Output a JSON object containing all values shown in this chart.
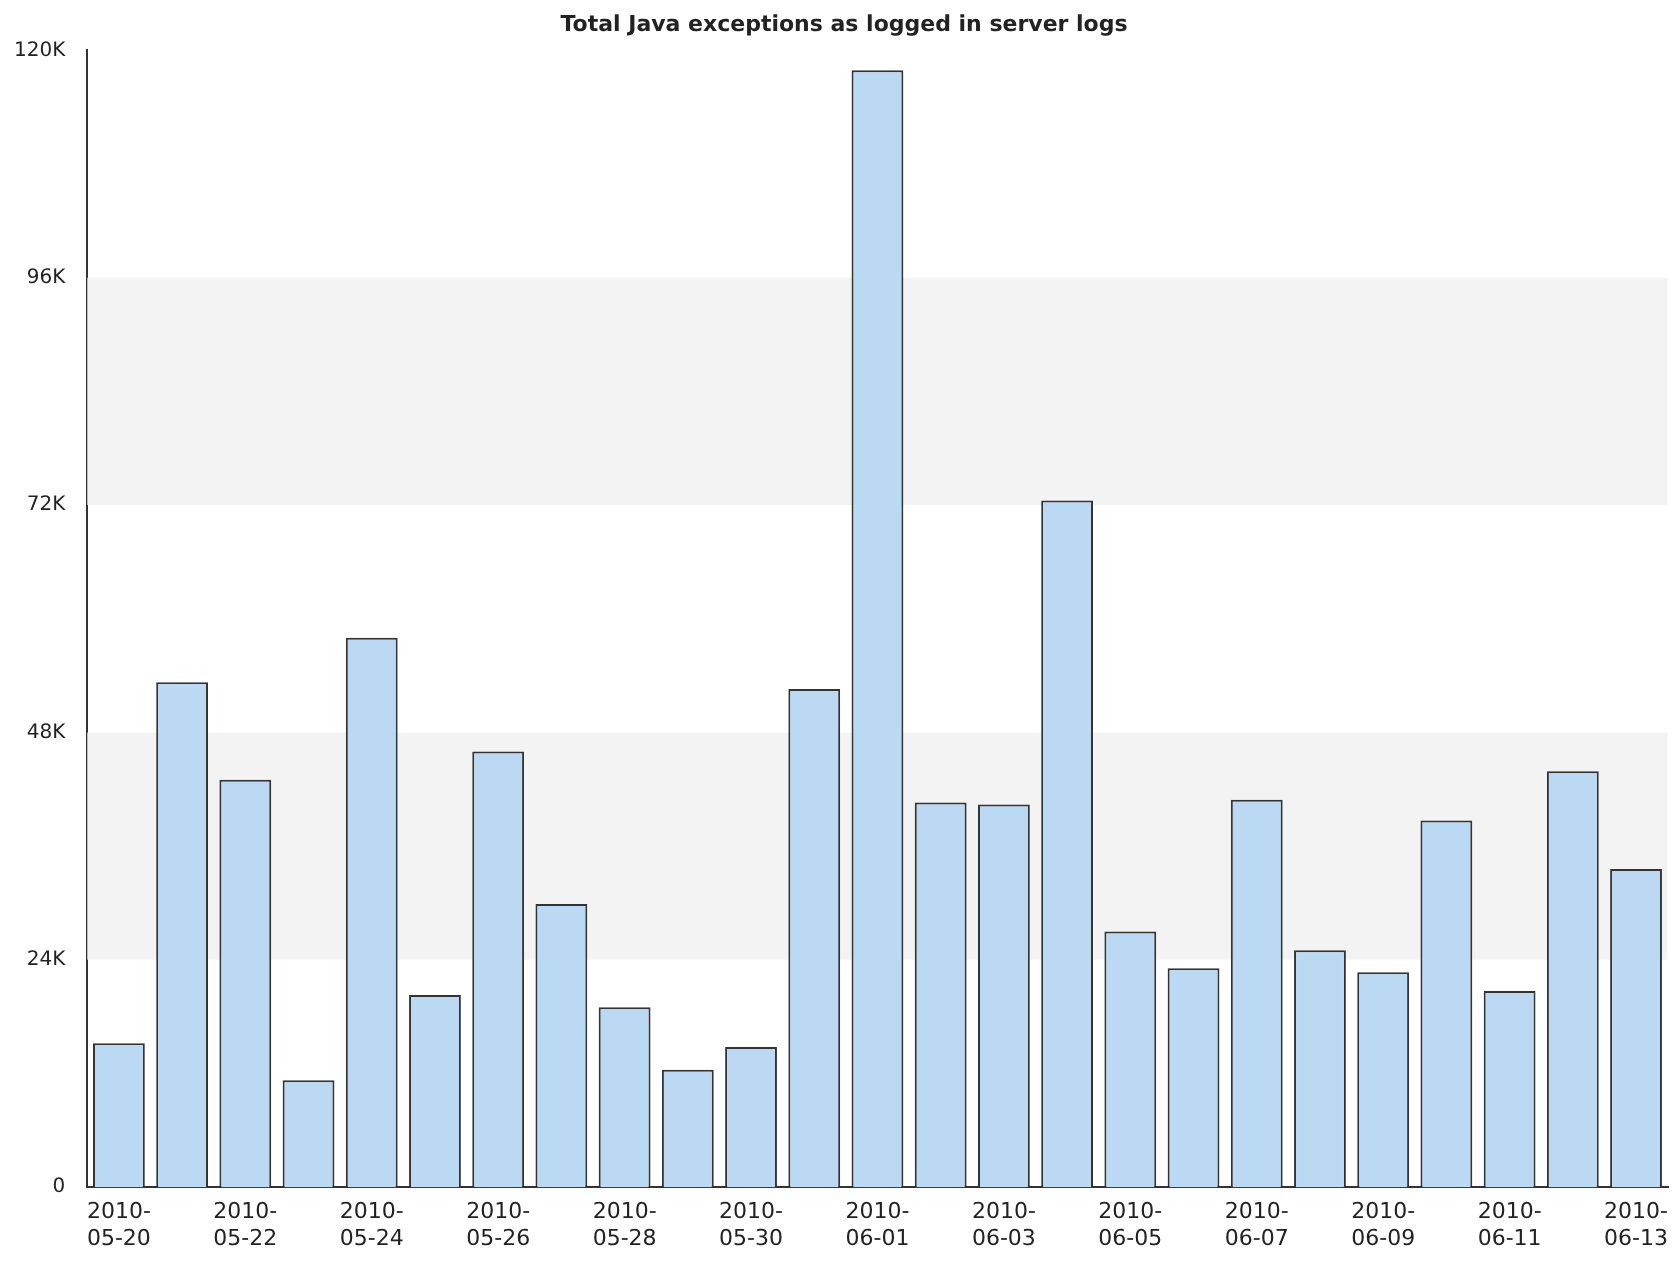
{
  "chart_data": {
    "type": "bar",
    "title": "Total Java exceptions as logged in server logs",
    "categories": [
      "2010-05-20",
      null,
      "2010-05-22",
      null,
      "2010-05-24",
      null,
      "2010-05-26",
      null,
      "2010-05-28",
      null,
      "2010-05-30",
      null,
      "2010-06-01",
      null,
      "2010-06-03",
      null,
      "2010-06-05",
      null,
      "2010-06-07",
      null,
      "2010-06-09",
      null,
      "2010-06-11",
      null,
      "2010-06-13"
    ],
    "values": [
      15200,
      53300,
      43000,
      11300,
      58000,
      20300,
      46000,
      29900,
      19000,
      12400,
      14800,
      52600,
      117900,
      40600,
      40400,
      72500,
      27000,
      23100,
      40900,
      25000,
      22700,
      38700,
      20700,
      43900,
      33600
    ],
    "color": "#bcd9f3",
    "ylim": [
      0,
      120000
    ],
    "yticks": [
      0,
      {
        "value": 24000,
        "label": "24K"
      },
      {
        "value": 48000,
        "label": "48K"
      },
      {
        "value": 72000,
        "label": "72K"
      },
      {
        "value": 96000,
        "label": "96K"
      },
      {
        "value": 120000,
        "label": "120K"
      }
    ],
    "grid": false,
    "legend": false
  }
}
